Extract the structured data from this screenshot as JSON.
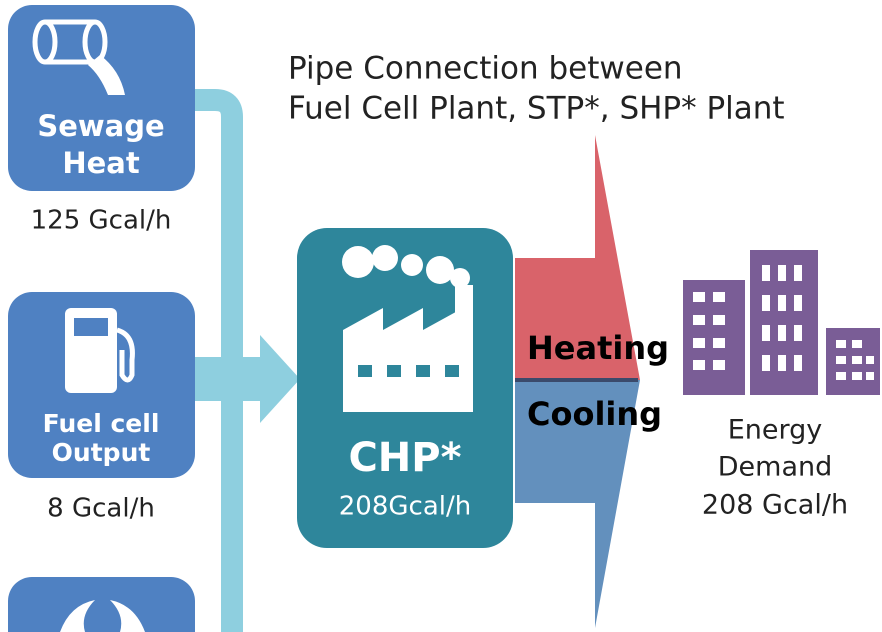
{
  "title": {
    "lines": [
      "Pipe Connection between",
      "Fuel Cell Plant, STP*, SHP* Plant"
    ]
  },
  "sources": [
    {
      "label": [
        "Sewage",
        "Heat"
      ],
      "value": "125 Gcal/h"
    },
    {
      "label": [
        "Fuel cell",
        "Output"
      ],
      "value": "8 Gcal/h"
    }
  ],
  "chp": {
    "label": "CHP*",
    "value": "208Gcal/h"
  },
  "flows": {
    "heating": "Heating",
    "cooling": "Cooling"
  },
  "demand": {
    "lines": [
      "Energy",
      "Demand",
      "208 Gcal/h"
    ]
  }
}
